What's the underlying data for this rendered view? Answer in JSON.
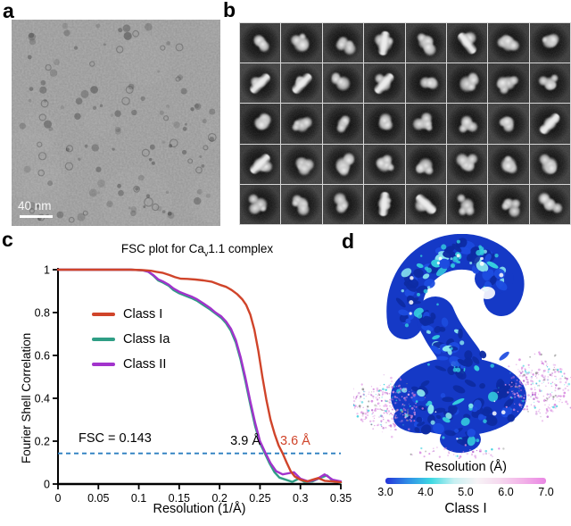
{
  "figure": {
    "panels": {
      "a": {
        "label": "a",
        "description": "cryo-EM micrograph",
        "scale_bar_label": "40 nm"
      },
      "b": {
        "label": "b",
        "description": "2D class averages grid",
        "grid": {
          "rows": 5,
          "cols": 8
        },
        "rod_cells": [
          {
            "row": 0,
            "col": 3,
            "angle": 8
          },
          {
            "row": 0,
            "col": 5,
            "angle": -38
          },
          {
            "row": 1,
            "col": 0,
            "angle": 46
          },
          {
            "row": 1,
            "col": 1,
            "angle": 44
          },
          {
            "row": 1,
            "col": 3,
            "angle": 42
          },
          {
            "row": 2,
            "col": 7,
            "angle": 42
          },
          {
            "row": 3,
            "col": 0,
            "angle": 46
          },
          {
            "row": 4,
            "col": 3,
            "angle": 6
          },
          {
            "row": 4,
            "col": 4,
            "angle": -48
          }
        ]
      },
      "c": {
        "label": "c"
      },
      "d": {
        "label": "d",
        "caption": "Class I",
        "colorbar": {
          "title": "Resolution (Å)",
          "ticks": [
            "3.0",
            "4.0",
            "5.0",
            "6.0",
            "7.0"
          ],
          "gradient": [
            "#2433d8",
            "#2f8fe6",
            "#3fd9e2",
            "#c8f0f2",
            "#f7f3f6",
            "#f6d9ef",
            "#f2b2e8",
            "#ea86e4"
          ]
        },
        "map_colors": {
          "body": "#1539c6",
          "shadow": "#0d2ba2",
          "mid": "#1d4ce0",
          "highlight": "#35cede",
          "highlight2": "#8ceaf0",
          "speckle": "#d98ce0"
        }
      }
    }
  },
  "chart_data": {
    "type": "line",
    "title": {
      "prefix": "FSC plot for Ca",
      "sub": "v",
      "suffix": "1.1 complex"
    },
    "xlabel": "Resolution (1/Å)",
    "ylabel": "Fourier Shell Correlation",
    "xlim": [
      0,
      0.35
    ],
    "ylim": [
      0,
      1
    ],
    "x_tick_values": [
      0,
      0.05,
      0.1,
      0.15,
      0.2,
      0.25,
      0.3,
      0.35
    ],
    "x_tick_labels": [
      "0",
      "0.05",
      "0.1",
      "0.15",
      "0.2",
      "0.25",
      "0.3",
      "0.35"
    ],
    "y_tick_values": [
      0,
      0.2,
      0.4,
      0.6,
      0.8,
      1
    ],
    "y_tick_labels": [
      "0",
      "0.2",
      "0.4",
      "0.6",
      "0.8",
      "1"
    ],
    "grid": false,
    "legend_position": "upper-left-inside",
    "threshold": {
      "label": "FSC = 0.143",
      "value": 0.143,
      "color": "#2b7fc0"
    },
    "annotations": [
      {
        "text": "3.9 Å",
        "color": "#000000"
      },
      {
        "text": "3.6 Å",
        "color": "#d0442a"
      }
    ],
    "series": [
      {
        "name": "Class I",
        "color": "#d0442a",
        "points": [
          [
            0,
            1
          ],
          [
            0.03,
            1
          ],
          [
            0.06,
            1
          ],
          [
            0.09,
            1
          ],
          [
            0.105,
            0.998
          ],
          [
            0.115,
            0.995
          ],
          [
            0.122,
            0.99
          ],
          [
            0.13,
            0.985
          ],
          [
            0.138,
            0.975
          ],
          [
            0.145,
            0.965
          ],
          [
            0.152,
            0.958
          ],
          [
            0.16,
            0.957
          ],
          [
            0.17,
            0.954
          ],
          [
            0.18,
            0.95
          ],
          [
            0.19,
            0.944
          ],
          [
            0.2,
            0.93
          ],
          [
            0.208,
            0.92
          ],
          [
            0.215,
            0.905
          ],
          [
            0.222,
            0.885
          ],
          [
            0.228,
            0.862
          ],
          [
            0.233,
            0.835
          ],
          [
            0.238,
            0.79
          ],
          [
            0.243,
            0.72
          ],
          [
            0.248,
            0.62
          ],
          [
            0.253,
            0.5
          ],
          [
            0.258,
            0.39
          ],
          [
            0.263,
            0.3
          ],
          [
            0.268,
            0.235
          ],
          [
            0.273,
            0.18
          ],
          [
            0.278,
            0.143
          ],
          [
            0.283,
            0.1
          ],
          [
            0.288,
            0.06
          ],
          [
            0.293,
            0.035
          ],
          [
            0.3,
            0.02
          ],
          [
            0.308,
            0.012
          ],
          [
            0.315,
            0.02
          ],
          [
            0.322,
            0.028
          ],
          [
            0.33,
            0.015
          ],
          [
            0.34,
            0.012
          ],
          [
            0.35,
            0.008
          ]
        ]
      },
      {
        "name": "Class Ia",
        "color": "#2f9e85",
        "points": [
          [
            0,
            1
          ],
          [
            0.03,
            1
          ],
          [
            0.06,
            1
          ],
          [
            0.09,
            1
          ],
          [
            0.105,
            0.997
          ],
          [
            0.112,
            0.99
          ],
          [
            0.118,
            0.972
          ],
          [
            0.124,
            0.95
          ],
          [
            0.13,
            0.94
          ],
          [
            0.137,
            0.925
          ],
          [
            0.143,
            0.905
          ],
          [
            0.15,
            0.89
          ],
          [
            0.158,
            0.878
          ],
          [
            0.165,
            0.868
          ],
          [
            0.172,
            0.855
          ],
          [
            0.18,
            0.835
          ],
          [
            0.188,
            0.815
          ],
          [
            0.195,
            0.795
          ],
          [
            0.202,
            0.775
          ],
          [
            0.208,
            0.75
          ],
          [
            0.214,
            0.715
          ],
          [
            0.22,
            0.66
          ],
          [
            0.226,
            0.58
          ],
          [
            0.232,
            0.48
          ],
          [
            0.238,
            0.37
          ],
          [
            0.244,
            0.27
          ],
          [
            0.25,
            0.19
          ],
          [
            0.256,
            0.143
          ],
          [
            0.262,
            0.095
          ],
          [
            0.268,
            0.055
          ],
          [
            0.274,
            0.03
          ],
          [
            0.282,
            0.02
          ],
          [
            0.29,
            0.01
          ],
          [
            0.298,
            0.025
          ],
          [
            0.305,
            0.01
          ],
          [
            0.315,
            0.012
          ],
          [
            0.325,
            0.03
          ],
          [
            0.333,
            0.04
          ],
          [
            0.34,
            0.015
          ],
          [
            0.35,
            0.006
          ]
        ]
      },
      {
        "name": "Class II",
        "color": "#a233cc",
        "points": [
          [
            0,
            1
          ],
          [
            0.03,
            1
          ],
          [
            0.06,
            1
          ],
          [
            0.09,
            1
          ],
          [
            0.105,
            0.997
          ],
          [
            0.112,
            0.99
          ],
          [
            0.118,
            0.975
          ],
          [
            0.124,
            0.955
          ],
          [
            0.13,
            0.945
          ],
          [
            0.137,
            0.93
          ],
          [
            0.143,
            0.912
          ],
          [
            0.15,
            0.897
          ],
          [
            0.158,
            0.885
          ],
          [
            0.165,
            0.875
          ],
          [
            0.172,
            0.862
          ],
          [
            0.18,
            0.843
          ],
          [
            0.188,
            0.822
          ],
          [
            0.195,
            0.8
          ],
          [
            0.202,
            0.782
          ],
          [
            0.208,
            0.758
          ],
          [
            0.214,
            0.725
          ],
          [
            0.22,
            0.672
          ],
          [
            0.226,
            0.592
          ],
          [
            0.232,
            0.495
          ],
          [
            0.238,
            0.385
          ],
          [
            0.244,
            0.285
          ],
          [
            0.25,
            0.2
          ],
          [
            0.257,
            0.143
          ],
          [
            0.263,
            0.098
          ],
          [
            0.27,
            0.06
          ],
          [
            0.278,
            0.045
          ],
          [
            0.285,
            0.05
          ],
          [
            0.292,
            0.055
          ],
          [
            0.3,
            0.025
          ],
          [
            0.31,
            0.012
          ],
          [
            0.32,
            0.022
          ],
          [
            0.33,
            0.045
          ],
          [
            0.34,
            0.02
          ],
          [
            0.35,
            0.012
          ]
        ]
      }
    ]
  }
}
